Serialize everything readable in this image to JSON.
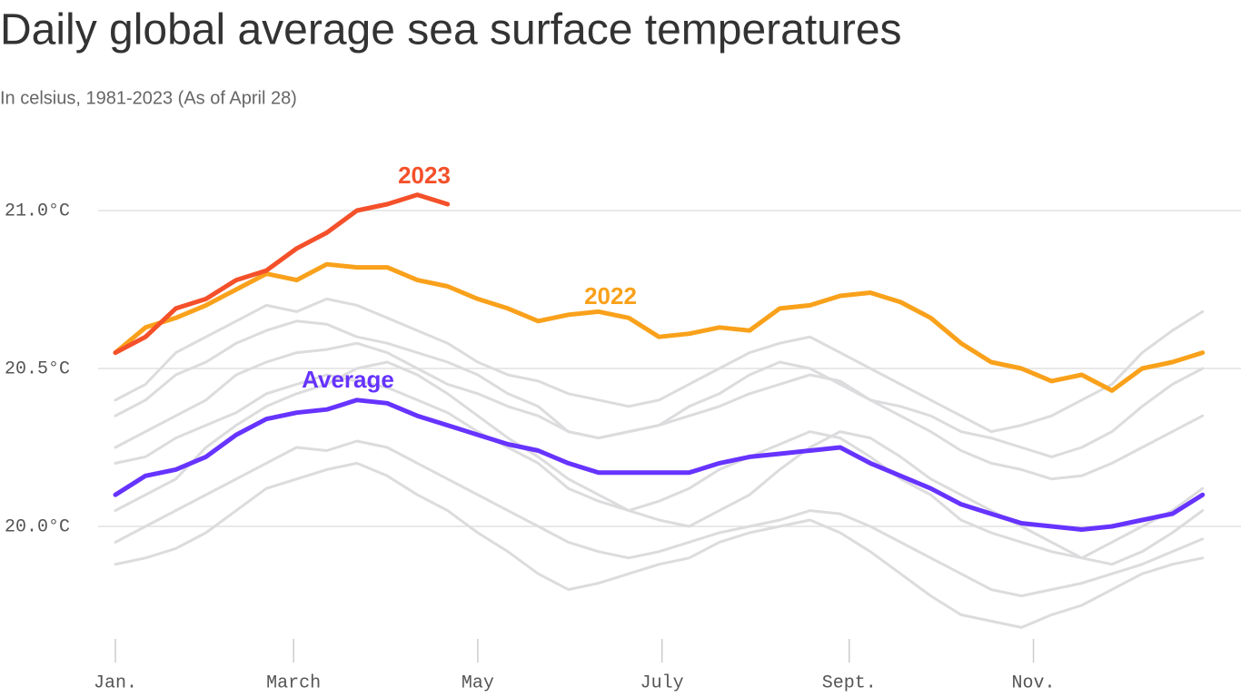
{
  "chart_data": {
    "type": "line",
    "title": "Daily global average sea surface temperatures",
    "subtitle": "In celsius, 1981-2023 (As of April 28)",
    "x": [
      1,
      11,
      21,
      31,
      41,
      51,
      61,
      71,
      81,
      91,
      101,
      111,
      121,
      131,
      141,
      151,
      161,
      171,
      181,
      191,
      201,
      211,
      221,
      231,
      241,
      251,
      261,
      271,
      281,
      291,
      301,
      311,
      321,
      331,
      341,
      351,
      361
    ],
    "xlim": [
      1,
      365
    ],
    "xticks": [
      {
        "value": 1,
        "label": "Jan."
      },
      {
        "value": 60,
        "label": "March"
      },
      {
        "value": 121,
        "label": "May"
      },
      {
        "value": 182,
        "label": "July"
      },
      {
        "value": 244,
        "label": "Sept."
      },
      {
        "value": 305,
        "label": "Nov."
      }
    ],
    "ylim": [
      19.6,
      21.2
    ],
    "yticks": [
      {
        "value": 20.0,
        "label": "20.0°C"
      },
      {
        "value": 20.5,
        "label": "20.5°C"
      },
      {
        "value": 21.0,
        "label": "21.0°C"
      }
    ],
    "grid": true,
    "series": [
      {
        "name": "2023",
        "color": "#f4502a",
        "values": [
          20.55,
          20.6,
          20.69,
          20.72,
          20.78,
          20.81,
          20.88,
          20.93,
          21.0,
          21.02,
          21.05,
          21.02,
          null,
          null,
          null,
          null,
          null,
          null,
          null,
          null,
          null,
          null,
          null,
          null,
          null,
          null,
          null,
          null,
          null,
          null,
          null,
          null,
          null,
          null,
          null,
          null,
          null
        ]
      },
      {
        "name": "2022",
        "color": "#f9a11b",
        "values": [
          20.55,
          20.63,
          20.66,
          20.7,
          20.75,
          20.8,
          20.78,
          20.83,
          20.82,
          20.82,
          20.78,
          20.76,
          20.72,
          20.69,
          20.65,
          20.67,
          20.68,
          20.66,
          20.6,
          20.61,
          20.63,
          20.62,
          20.69,
          20.7,
          20.73,
          20.74,
          20.71,
          20.66,
          20.58,
          20.52,
          20.5,
          20.46,
          20.48,
          20.43,
          20.5,
          20.52,
          20.55
        ]
      },
      {
        "name": "Average",
        "color": "#6633ff",
        "values": [
          20.1,
          20.16,
          20.18,
          20.22,
          20.29,
          20.34,
          20.36,
          20.37,
          20.4,
          20.39,
          20.35,
          20.32,
          20.29,
          20.26,
          20.24,
          20.2,
          20.17,
          20.17,
          20.17,
          20.17,
          20.2,
          20.22,
          20.23,
          20.24,
          20.25,
          20.2,
          20.16,
          20.12,
          20.07,
          20.04,
          20.01,
          20.0,
          19.99,
          20.0,
          20.02,
          20.04,
          20.1
        ]
      }
    ],
    "background_color": "#dcdcde",
    "background_lines": [
      [
        20.4,
        20.45,
        20.55,
        20.6,
        20.65,
        20.7,
        20.68,
        20.72,
        20.7,
        20.66,
        20.62,
        20.58,
        20.52,
        20.48,
        20.46,
        20.42,
        20.4,
        20.38,
        20.4,
        20.45,
        20.5,
        20.55,
        20.58,
        20.6,
        20.55,
        20.5,
        20.45,
        20.4,
        20.35,
        20.3,
        20.32,
        20.35,
        20.4,
        20.45,
        20.55,
        20.62,
        20.68
      ],
      [
        20.25,
        20.3,
        20.35,
        20.4,
        20.48,
        20.52,
        20.55,
        20.56,
        20.58,
        20.55,
        20.5,
        20.45,
        20.42,
        20.38,
        20.35,
        20.3,
        20.28,
        20.3,
        20.32,
        20.35,
        20.38,
        20.42,
        20.45,
        20.48,
        20.46,
        20.4,
        20.35,
        20.3,
        20.24,
        20.2,
        20.18,
        20.15,
        20.16,
        20.2,
        20.25,
        20.3,
        20.35
      ],
      [
        19.95,
        20.0,
        20.05,
        20.1,
        20.15,
        20.2,
        20.25,
        20.24,
        20.27,
        20.25,
        20.2,
        20.15,
        20.1,
        20.05,
        20.0,
        19.95,
        19.92,
        19.9,
        19.92,
        19.95,
        19.98,
        20.0,
        20.02,
        20.05,
        20.04,
        20.0,
        19.95,
        19.9,
        19.85,
        19.8,
        19.78,
        19.8,
        19.82,
        19.85,
        19.88,
        19.92,
        19.96
      ],
      [
        19.88,
        19.9,
        19.93,
        19.98,
        20.05,
        20.12,
        20.15,
        20.18,
        20.2,
        20.16,
        20.1,
        20.05,
        19.98,
        19.92,
        19.85,
        19.8,
        19.82,
        19.85,
        19.88,
        19.9,
        19.95,
        19.98,
        20.0,
        20.02,
        19.98,
        19.92,
        19.85,
        19.78,
        19.72,
        19.7,
        19.68,
        19.72,
        19.75,
        19.8,
        19.85,
        19.88,
        19.9
      ],
      [
        20.2,
        20.22,
        20.28,
        20.32,
        20.36,
        20.42,
        20.45,
        20.48,
        20.46,
        20.44,
        20.4,
        20.36,
        20.3,
        20.25,
        20.2,
        20.12,
        20.08,
        20.05,
        20.08,
        20.12,
        20.18,
        20.22,
        20.26,
        20.3,
        20.28,
        20.22,
        20.15,
        20.1,
        20.02,
        19.98,
        19.95,
        19.92,
        19.9,
        19.95,
        20.0,
        20.05,
        20.12
      ],
      [
        20.05,
        20.1,
        20.15,
        20.25,
        20.32,
        20.38,
        20.42,
        20.45,
        20.5,
        20.52,
        20.48,
        20.42,
        20.35,
        20.28,
        20.22,
        20.15,
        20.1,
        20.05,
        20.02,
        20.0,
        20.05,
        20.1,
        20.18,
        20.25,
        20.3,
        20.28,
        20.22,
        20.15,
        20.1,
        20.05,
        20.0,
        19.95,
        19.9,
        19.88,
        19.92,
        19.98,
        20.05
      ],
      [
        20.35,
        20.4,
        20.48,
        20.52,
        20.58,
        20.62,
        20.65,
        20.64,
        20.6,
        20.58,
        20.55,
        20.52,
        20.48,
        20.42,
        20.38,
        20.3,
        20.28,
        20.3,
        20.32,
        20.38,
        20.42,
        20.48,
        20.52,
        20.5,
        20.45,
        20.4,
        20.38,
        20.35,
        20.3,
        20.28,
        20.25,
        20.22,
        20.25,
        20.3,
        20.38,
        20.45,
        20.5
      ]
    ]
  }
}
